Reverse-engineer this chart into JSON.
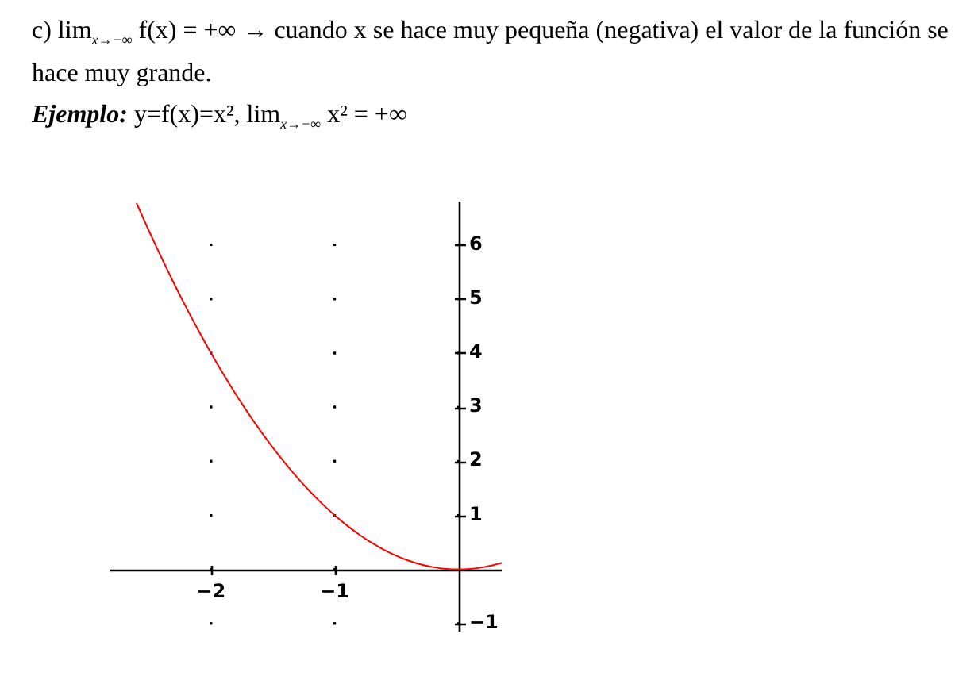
{
  "chart_data": {
    "type": "line",
    "title": "c) lim$_{x→−∞}$ f(x) = +∞ → cuando x se hace muy pequeña (negativa) el valor de la función se hace muy grande.",
    "annotations": [
      "Ejemplo:",
      "y=f(x)=x², lim$_{x→−∞}$ x² = +∞"
    ],
    "x": [
      -2.6,
      -2.5,
      -2.4,
      -2.3,
      -2.2,
      -2.1,
      -2.0,
      -1.9,
      -1.8,
      -1.7,
      -1.6,
      -1.5,
      -1.4,
      -1.3,
      -1.2,
      -1.1,
      -1.0,
      -0.9,
      -0.8,
      -0.7,
      -0.6,
      -0.5,
      -0.4,
      -0.3,
      -0.2,
      -0.1,
      0,
      0.1,
      0.2,
      0.3,
      0.35
    ],
    "series": [
      {
        "color": "#ff0000",
        "values": [
          6.76,
          6.25,
          5.76,
          5.29,
          4.84,
          4.41,
          4,
          3.61,
          3.24,
          2.89,
          2.56,
          2.25,
          1.96,
          1.69,
          1.44,
          1.21,
          1,
          0.81,
          0.64,
          0.49,
          0.36,
          0.25,
          0.16,
          0.09,
          0.04,
          0.01,
          0,
          0.01,
          0.04,
          0.09,
          0.12
        ]
      }
    ],
    "xlim": [
      -2.82,
      0.35
    ],
    "ylim": [
      -1.15,
      6.8
    ],
    "xticks": [
      {
        "value": -2,
        "label": "−2"
      },
      {
        "value": -1,
        "label": "−1"
      }
    ],
    "yticks": [
      {
        "value": -1,
        "label": "−1"
      },
      1,
      2,
      3,
      4,
      5,
      6
    ],
    "grid": true,
    "marker": "none"
  }
}
